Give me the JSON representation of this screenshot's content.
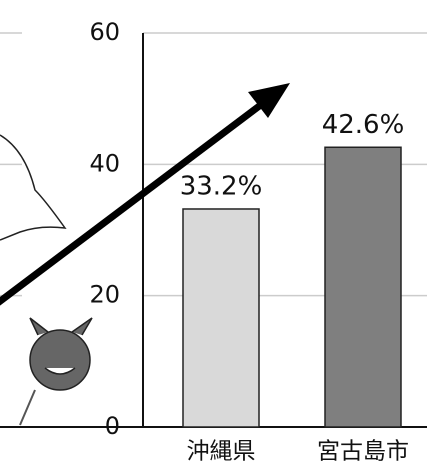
{
  "chart_data": {
    "type": "bar",
    "categories": [
      "沖縄県",
      "宮古島市"
    ],
    "values": [
      33.2,
      42.6
    ],
    "value_labels": [
      "33.2%",
      "42.6%"
    ],
    "colors": [
      "#d9d9d9",
      "#7f7f7f"
    ],
    "ylim": [
      0,
      60
    ],
    "yticks": [
      0,
      20,
      40,
      60
    ],
    "grid": true
  }
}
